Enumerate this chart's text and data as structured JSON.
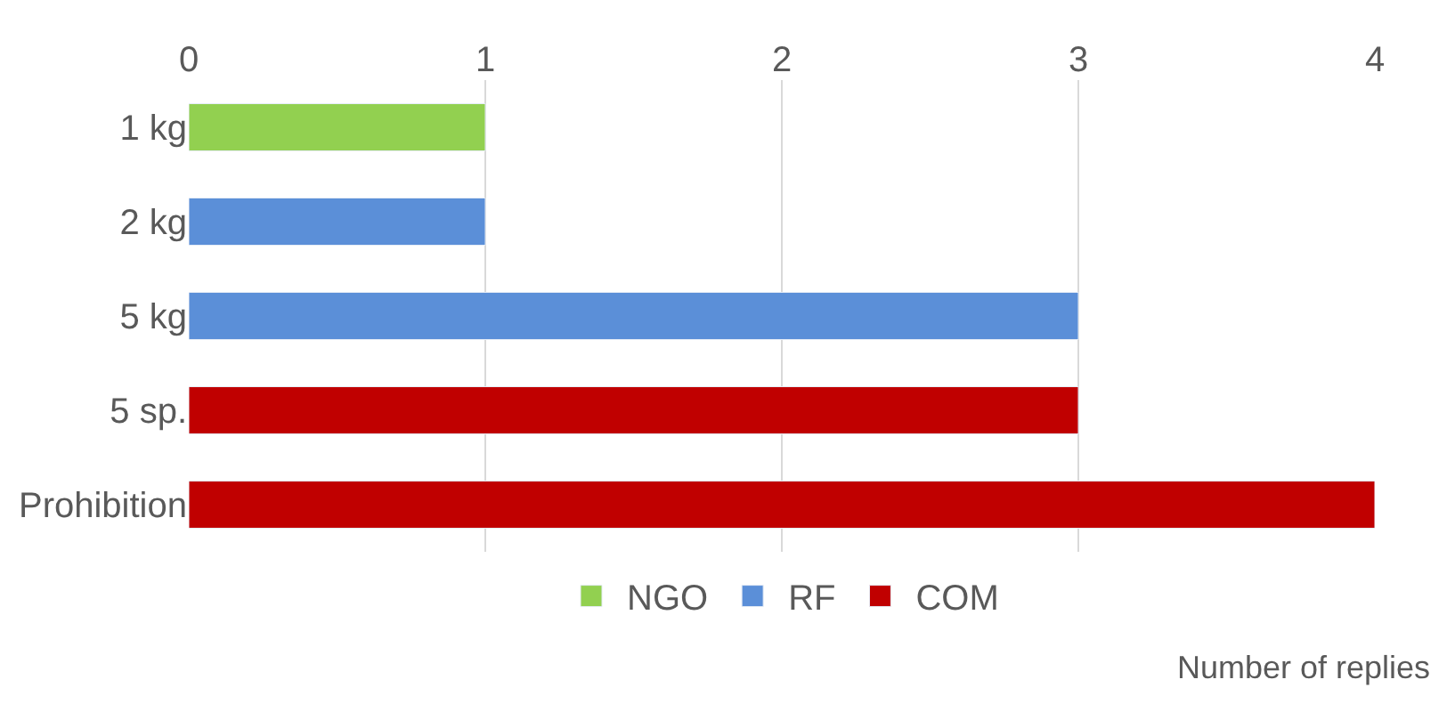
{
  "chart_data": {
    "type": "bar",
    "orientation": "horizontal",
    "xlabel": "Number of replies",
    "categories": [
      "1 kg",
      "2 kg",
      "5 kg",
      "5 sp.",
      "Prohibition"
    ],
    "series": [
      {
        "name": "NGO",
        "color": "#92d050",
        "values": [
          1,
          null,
          null,
          null,
          null
        ]
      },
      {
        "name": "RF",
        "color": "#5b8fd8",
        "values": [
          null,
          1,
          3,
          null,
          null
        ]
      },
      {
        "name": "COM",
        "color": "#c00000",
        "values": [
          null,
          null,
          null,
          3,
          4
        ]
      }
    ],
    "xlim": [
      0,
      4
    ],
    "xticks": [
      0,
      1,
      2,
      3,
      4
    ],
    "grid": "x",
    "legend": "bottom"
  }
}
